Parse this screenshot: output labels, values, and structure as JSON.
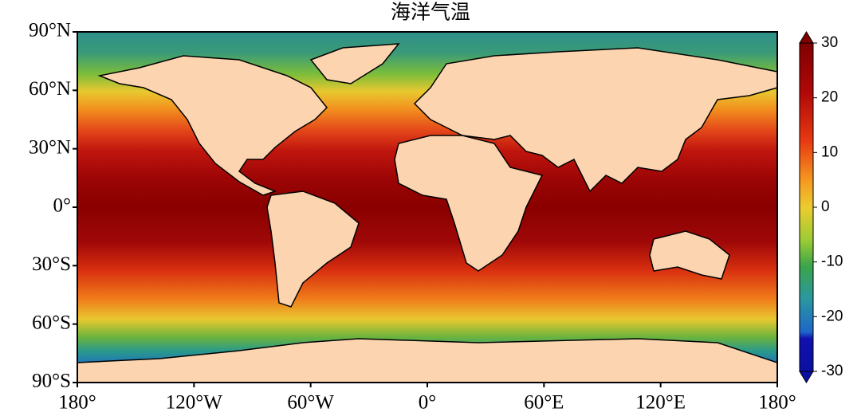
{
  "chart_data": {
    "type": "map",
    "title": "海洋气温",
    "xlim": [
      -180,
      180
    ],
    "ylim": [
      -90,
      90
    ],
    "xticks": [
      {
        "value": -180,
        "label": "180°"
      },
      {
        "value": -120,
        "label": "120°W"
      },
      {
        "value": -60,
        "label": "60°W"
      },
      {
        "value": 0,
        "label": "0°"
      },
      {
        "value": 60,
        "label": "60°E"
      },
      {
        "value": 120,
        "label": "120°E"
      },
      {
        "value": 180,
        "label": "180°"
      }
    ],
    "yticks": [
      {
        "value": 90,
        "label": "90°N"
      },
      {
        "value": 60,
        "label": "60°N"
      },
      {
        "value": 30,
        "label": "30°N"
      },
      {
        "value": 0,
        "label": "0°"
      },
      {
        "value": -30,
        "label": "30°S"
      },
      {
        "value": -60,
        "label": "60°S"
      },
      {
        "value": -90,
        "label": "90°S"
      }
    ],
    "colorbar": {
      "lim": [
        -30,
        30
      ],
      "ticks": [
        30,
        20,
        10,
        0,
        -10,
        -20,
        -30
      ]
    }
  }
}
